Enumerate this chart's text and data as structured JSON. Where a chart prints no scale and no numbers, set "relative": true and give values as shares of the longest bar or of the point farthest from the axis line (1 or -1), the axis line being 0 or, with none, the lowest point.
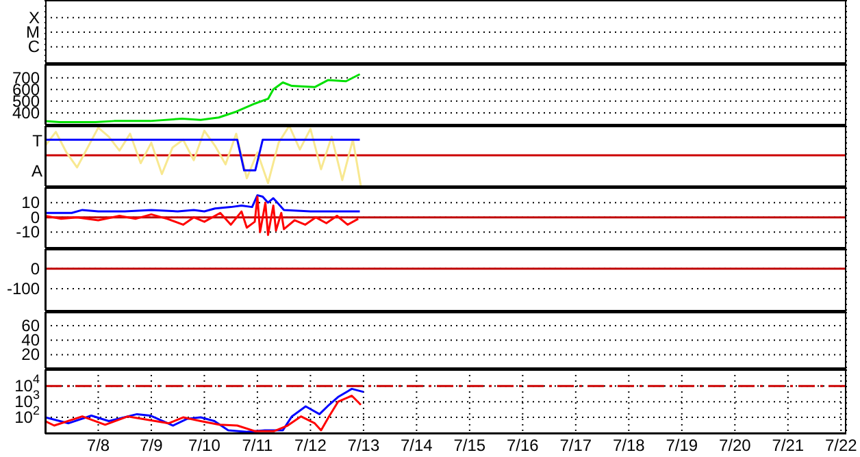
{
  "chart_data": [
    {
      "type": "other",
      "y_categories": [
        "X",
        "M",
        "C"
      ]
    },
    {
      "type": "line",
      "xlim": [
        "--07-07",
        "--07-22T02:24"
      ],
      "ylim": [
        300,
        815
      ],
      "yticks": [
        400,
        500,
        600,
        700
      ],
      "grid": true,
      "tick_labels": "y",
      "series": [
        {
          "color": "#00e000",
          "x": [
            "--07-07T00:00",
            "--07-07T06:30",
            "--07-07T22:50",
            "--07-08T07:10",
            "--07-08T23:30",
            "--07-09T13:55",
            "--07-09T22:20",
            "--07-10T06:30",
            "--07-10T14:25",
            "--07-10T23:00",
            "--07-11T04:50",
            "--07-11T07:10",
            "--07-11T11:30",
            "--07-11T15:35",
            "--07-12T01:55",
            "--07-12T07:55",
            "--07-12T16:05",
            "--07-12T22:20"
          ],
          "values": [
            330,
            320,
            320,
            330,
            330,
            350,
            340,
            360,
            410,
            480,
            520,
            600,
            660,
            630,
            620,
            680,
            670,
            730
          ]
        }
      ]
    },
    {
      "type": "line",
      "relative": true,
      "xlim": [
        "--07-07",
        "--07-22T02:24"
      ],
      "grid": true,
      "tick_labels": "y",
      "annotations": [
        "T",
        "A"
      ],
      "ref_lines": [
        {
          "axis": "y",
          "value": 0.51,
          "color": "#cc0000"
        }
      ],
      "series": [
        {
          "color": "#f8e890",
          "x": [
            "--07-07T00:00",
            "--07-07T04:48",
            "--07-07T09:36",
            "--07-07T14:24",
            "--07-07T19:12",
            "--07-08T00:00",
            "--07-08T04:48",
            "--07-08T09:36",
            "--07-08T14:24",
            "--07-08T19:12",
            "--07-09T00:00",
            "--07-09T04:48",
            "--07-09T09:36",
            "--07-09T14:24",
            "--07-09T19:12",
            "--07-10T00:00",
            "--07-10T04:48",
            "--07-10T09:36",
            "--07-10T14:24",
            "--07-10T19:12",
            "--07-11T00:00",
            "--07-11T04:48",
            "--07-11T09:36",
            "--07-11T14:24",
            "--07-11T19:12",
            "--07-12T00:00",
            "--07-12T04:48",
            "--07-12T09:36",
            "--07-12T14:24",
            "--07-12T19:12",
            "--07-12T22:48"
          ],
          "values": [
            0.67,
            0.9,
            0.56,
            0.31,
            0.64,
            0.97,
            0.82,
            0.59,
            0.87,
            0.38,
            0.72,
            0.2,
            0.64,
            0.77,
            0.43,
            0.92,
            0.67,
            0.36,
            0.87,
            0.13,
            0.56,
            0.05,
            0.72,
            1,
            0.61,
            0.95,
            0.28,
            0.82,
            0.1,
            0.77,
            0
          ]
        },
        {
          "color": "#0000ff",
          "x": [
            "--07-07T00:00",
            "--07-10T14:53",
            "--07-10T18:00",
            "--07-10T23:02",
            "--07-11T02:24",
            "--07-12T22:19"
          ],
          "values": [
            0.77,
            0.77,
            0.26,
            0.26,
            0.77,
            0.77
          ]
        }
      ]
    },
    {
      "type": "line",
      "xlim": [
        "--07-07",
        "--07-22T02:24"
      ],
      "ylim": [
        -20.6,
        20.3
      ],
      "yticks": [
        10,
        0,
        -10
      ],
      "grid": true,
      "tick_labels": "y",
      "ref_lines": [
        {
          "axis": "y",
          "value": 0,
          "color": "#c00000"
        }
      ],
      "series": [
        {
          "color": "#0000ff",
          "x": [
            "--07-07T00:00",
            "--07-07T12:00",
            "--07-07T16:48",
            "--07-08T00:00",
            "--07-08T12:00",
            "--07-09T00:00",
            "--07-09T12:00",
            "--07-09T19:12",
            "--07-10T00:00",
            "--07-10T04:48",
            "--07-10T12:00",
            "--07-10T16:48",
            "--07-10T21:36",
            "--07-11T00:00",
            "--07-11T02:24",
            "--07-11T04:48",
            "--07-11T07:12",
            "--07-11T09:36",
            "--07-11T12:00",
            "--07-12T00:00",
            "--07-12T12:00",
            "--07-12T22:19"
          ],
          "values": [
            3,
            3,
            5,
            4,
            4,
            5,
            4,
            5,
            4,
            6,
            7,
            8,
            7,
            15,
            14,
            10,
            13,
            9,
            5,
            4,
            4,
            4
          ]
        },
        {
          "color": "#ff0000",
          "x": [
            "--07-07T00:00",
            "--07-07T07:12",
            "--07-07T14:24",
            "--07-08T00:00",
            "--07-08T09:36",
            "--07-08T16:48",
            "--07-09T00:00",
            "--07-09T07:12",
            "--07-09T14:24",
            "--07-09T19:12",
            "--07-10T00:00",
            "--07-10T07:12",
            "--07-10T12:00",
            "--07-10T16:48",
            "--07-10T19:12",
            "--07-10T22:48",
            "--07-11T00:00",
            "--07-11T01:12",
            "--07-11T03:36",
            "--07-11T04:48",
            "--07-11T07:12",
            "--07-11T08:24",
            "--07-11T10:48",
            "--07-11T12:00",
            "--07-11T16:48",
            "--07-11T21:36",
            "--07-12T02:24",
            "--07-12T07:12",
            "--07-12T12:00",
            "--07-12T16:48",
            "--07-12T21:36"
          ],
          "values": [
            1,
            -1,
            0,
            -2,
            1,
            -1,
            2,
            -1,
            -5,
            0,
            -3,
            3,
            -5,
            4,
            -7,
            -3,
            14,
            -10,
            10,
            -12,
            8,
            -9,
            3,
            -8,
            -2,
            -5,
            0,
            -4,
            1,
            -5,
            -1
          ]
        }
      ]
    },
    {
      "type": "line",
      "xlim": [
        "--07-07",
        "--07-22T02:24"
      ],
      "ylim": [
        -209,
        98
      ],
      "yticks": [
        0,
        -100
      ],
      "grid": true,
      "tick_labels": "y",
      "ref_lines": [
        {
          "axis": "y",
          "value": 0,
          "color": "#c00000"
        }
      ]
    },
    {
      "type": "line",
      "xlim": [
        "--07-07",
        "--07-22T02:24"
      ],
      "ylim": [
        1.5,
        79
      ],
      "yticks": [
        60,
        40,
        20
      ],
      "grid": true,
      "tick_labels": "y"
    },
    {
      "type": "line",
      "xlim": [
        "--07-07",
        "--07-22T02:24"
      ],
      "xticks": [
        {
          "value": "--07-08",
          "label": "7/8"
        },
        {
          "value": "--07-09",
          "label": "7/9"
        },
        {
          "value": "--07-10",
          "label": "7/10"
        },
        {
          "value": "--07-11",
          "label": "7/11"
        },
        {
          "value": "--07-12",
          "label": "7/12"
        },
        {
          "value": "--07-13",
          "label": "7/13"
        },
        {
          "value": "--07-14",
          "label": "7/14"
        },
        {
          "value": "--07-15",
          "label": "7/15"
        },
        {
          "value": "--07-16",
          "label": "7/16"
        },
        {
          "value": "--07-17",
          "label": "7/17"
        },
        {
          "value": "--07-18",
          "label": "7/18"
        },
        {
          "value": "--07-19",
          "label": "7/19"
        },
        {
          "value": "--07-20",
          "label": "7/20"
        },
        {
          "value": "--07-21",
          "label": "7/21"
        },
        {
          "value": "--07-22",
          "label": "7/22"
        }
      ],
      "ylim": [
        9,
        115000
      ],
      "yticks": [
        {
          "value": 10000,
          "label": "10$^{4}$"
        },
        {
          "value": 1000,
          "label": "10$^{3}$"
        },
        {
          "value": 100,
          "label": "10$^{2}$"
        }
      ],
      "log": true,
      "grid": true,
      "ref_lines": [
        {
          "axis": "y",
          "value": 10000,
          "color": "#cc0000",
          "line_style": "dashed"
        }
      ],
      "series": [
        {
          "color": "#0000ff",
          "x": [
            "--07-07T00:00",
            "--07-07T10:34",
            "--07-07T20:53",
            "--07-08T04:48",
            "--07-08T17:31",
            "--07-08T23:31",
            "--07-09T09:50",
            "--07-09T16:05",
            "--07-09T22:19",
            "--07-10T04:34",
            "--07-10T10:48",
            "--07-10T19:12",
            "--07-11T03:22",
            "--07-11T11:31",
            "--07-11T15:36",
            "--07-11T21:50",
            "--07-12T04:05",
            "--07-12T08:24",
            "--07-12T12:29",
            "--07-12T18:43",
            "--07-13T00:00"
          ],
          "values": [
            100,
            42,
            130,
            58,
            160,
            130,
            30,
            80,
            100,
            58,
            15,
            12,
            15,
            15,
            115,
            500,
            160,
            630,
            2000,
            6600,
            4200
          ]
        },
        {
          "color": "#ff0000",
          "x": [
            "--07-07T00:00",
            "--07-07T04:05",
            "--07-07T16:48",
            "--07-08T03:07",
            "--07-08T13:26",
            "--07-08T23:31",
            "--07-09T07:55",
            "--07-09T14:24",
            "--07-09T22:19",
            "--07-10T06:43",
            "--07-10T14:53",
            "--07-10T23:02",
            "--07-11T07:26",
            "--07-11T13:41",
            "--07-11T19:41",
            "--07-12T01:55",
            "--07-12T04:48",
            "--07-12T08:24",
            "--07-12T12:29",
            "--07-12T18:43",
            "--07-12T22:48"
          ],
          "values": [
            58,
            30,
            115,
            34,
            115,
            66,
            42,
            100,
            58,
            34,
            30,
            13,
            13,
            30,
            115,
            42,
            15,
            115,
            1000,
            2400,
            630
          ]
        }
      ]
    }
  ]
}
